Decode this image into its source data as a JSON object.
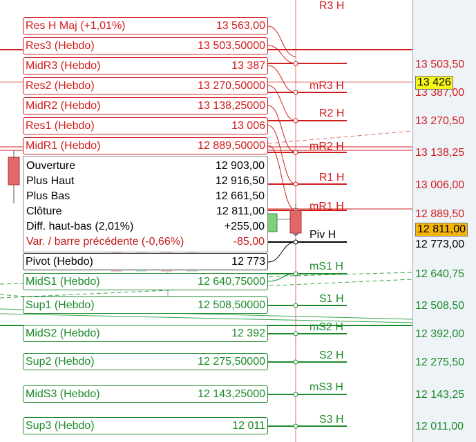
{
  "pivots": [
    {
      "key": "res_h_maj",
      "label": "Res H Maj (+1,01%)",
      "value": "13 563,00",
      "tag": "",
      "side": "red"
    },
    {
      "key": "res3",
      "label": "Res3 (Hebdo)",
      "value": "13 503,50000",
      "tag": "R3 H",
      "side": "red"
    },
    {
      "key": "midr3",
      "label": "MidR3 (Hebdo)",
      "value": "13 387",
      "tag": "mR3 H",
      "side": "red"
    },
    {
      "key": "res2",
      "label": "Res2 (Hebdo)",
      "value": "13 270,50000",
      "tag": "R2 H",
      "side": "red"
    },
    {
      "key": "midr2",
      "label": "MidR2 (Hebdo)",
      "value": "13 138,25000",
      "tag": "mR2 H",
      "side": "red"
    },
    {
      "key": "res1",
      "label": "Res1 (Hebdo)",
      "value": "13 006",
      "tag": "R1 H",
      "side": "red"
    },
    {
      "key": "midr1",
      "label": "MidR1 (Hebdo)",
      "value": "12 889,50000",
      "tag": "mR1 H",
      "side": "red"
    },
    {
      "key": "pivot",
      "label": "Pivot (Hebdo)",
      "value": "12 773",
      "tag": "Piv H",
      "side": "black"
    },
    {
      "key": "mids1",
      "label": "MidS1 (Hebdo)",
      "value": "12 640,75000",
      "tag": "mS1 H",
      "side": "green"
    },
    {
      "key": "sup1",
      "label": "Sup1 (Hebdo)",
      "value": "12 508,50000",
      "tag": "S1 H",
      "side": "green"
    },
    {
      "key": "mids2",
      "label": "MidS2 (Hebdo)",
      "value": "12 392",
      "tag": "mS2 H",
      "side": "green"
    },
    {
      "key": "sup2",
      "label": "Sup2 (Hebdo)",
      "value": "12 275,50000",
      "tag": "S2 H",
      "side": "green"
    },
    {
      "key": "mids3",
      "label": "MidS3 (Hebdo)",
      "value": "12 143,25000",
      "tag": "mS3 H",
      "side": "green"
    },
    {
      "key": "sup3",
      "label": "Sup3 (Hebdo)",
      "value": "12 011",
      "tag": "S3 H",
      "side": "green"
    }
  ],
  "info": {
    "open_label": "Ouverture",
    "open_value": "12 903,00",
    "high_label": "Plus Haut",
    "high_value": "12 916,50",
    "low_label": "Plus Bas",
    "low_value": "12 661,50",
    "close_label": "Clôture",
    "close_value": "12 811,00",
    "range_label": "Diff. haut-bas (2,01%)",
    "range_value": "+255,00",
    "change_label": "Var. / barre précédente (-0,66%)",
    "change_value": "-85,00"
  },
  "axis_labels": {
    "r3": "13 503,50",
    "crosshair": "13 426",
    "mr3": "13 387,00",
    "r2": "13 270,50",
    "mr2": "13 138,25",
    "r1": "13 006,00",
    "mr1": "12 889,50",
    "close": "12 811,00",
    "piv": "12 773,00",
    "ms1": "12 640,75",
    "s1": "12 508,50",
    "ms2": "12 392,00",
    "s2": "12 275,50",
    "ms3": "12 143,25",
    "s3": "12 011,00"
  },
  "colors": {
    "resistance": "#d01c1c",
    "support": "#1b8a2a",
    "pivot": "#000000",
    "crosshair_bg": "#f5f51a",
    "close_bg": "#f5b50a",
    "axis_bg": "#eef3f8"
  }
}
